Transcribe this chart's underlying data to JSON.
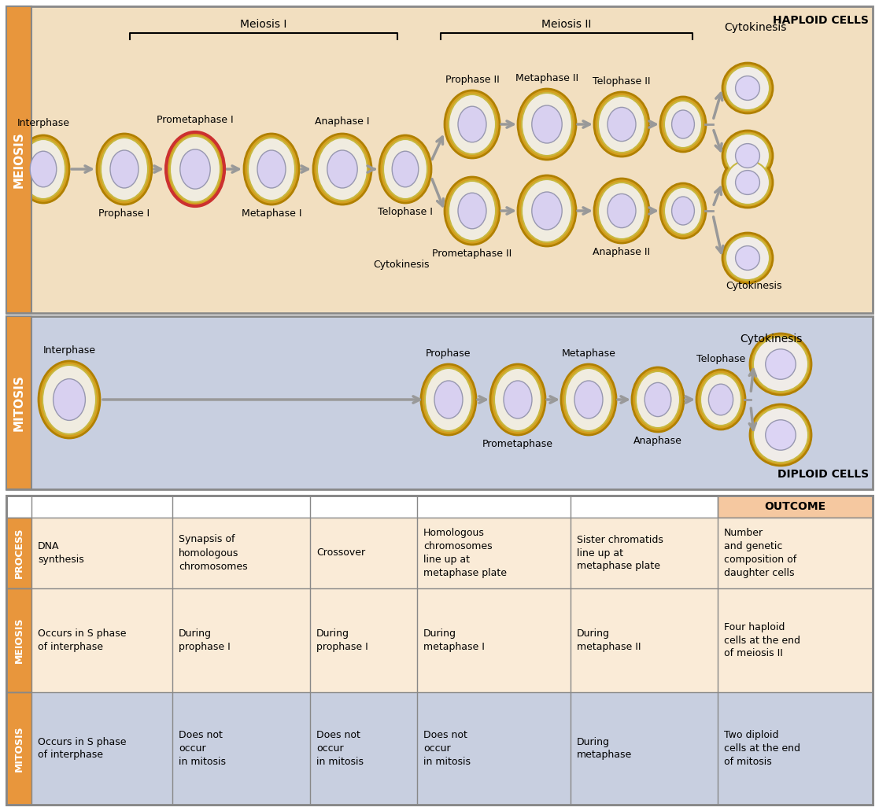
{
  "meiosis_bg": "#f2dfc0",
  "mitosis_bg": "#c8cfe0",
  "table_process_bg": "#faebd7",
  "table_meiosis_bg": "#faebd7",
  "table_mitosis_bg": "#c8cfe0",
  "table_outcome_header_bg": "#f5c8a0",
  "orange_sidebar": "#e8963c",
  "border_color": "#888888",
  "haploid_label": "HAPLOID CELLS",
  "diploid_label": "DIPLOID CELLS",
  "meiosis_sidebar_label": "MEIOSIS",
  "mitosis_sidebar_label": "MITOSIS",
  "meiosis_I_label": "Meiosis I",
  "meiosis_II_label": "Meiosis II",
  "cytokinesis_top_label": "Cytokinesis",
  "cytokinesis_mid_label": "Cytokinesis",
  "cytokinesis_bot_label": "Cytokinesis",
  "meiosis_I_phases_above": [
    "Interphase",
    "Prometaphase I",
    "Anaphase I"
  ],
  "meiosis_I_phases_below": [
    "Prophase I",
    "Metaphase I",
    "Telophase I"
  ],
  "meiosis_II_phases_top_above": [
    "Prophase II",
    "Metaphase II",
    "Telophase II"
  ],
  "meiosis_II_phases_bot_below": [
    "Prometaphase II",
    "Anaphase II"
  ],
  "mitosis_phases_above": [
    "Interphase",
    "Prophase",
    "Metaphase",
    "Telophase"
  ],
  "mitosis_phases_below": [
    "Prometaphase",
    "Anaphase"
  ],
  "outcome_label": "OUTCOME",
  "process_sidebar_label": "PROCESS",
  "table_header_row": [
    "DNA\nsynthesis",
    "Synapsis of\nhomologous\nchromosomes",
    "Crossover",
    "Homologous\nchromosomes\nline up at\nmetaphase plate",
    "Sister chromatids\nline up at\nmetaphase plate",
    "Number\nand genetic\ncomposition of\ndaughter cells"
  ],
  "table_meiosis_row": [
    "Occurs in S phase\nof interphase",
    "During\nprophase I",
    "During\nprophase I",
    "During\nmetaphase I",
    "During\nmetaphase II",
    "Four haploid\ncells at the end\nof meiosis II"
  ],
  "table_mitosis_row": [
    "Occurs in S phase\nof interphase",
    "Does not\noccur\nin mitosis",
    "Does not\noccur\nin mitosis",
    "Does not\noccur\nin mitosis",
    "During\nmetaphase",
    "Two diploid\ncells at the end\nof mitosis"
  ]
}
